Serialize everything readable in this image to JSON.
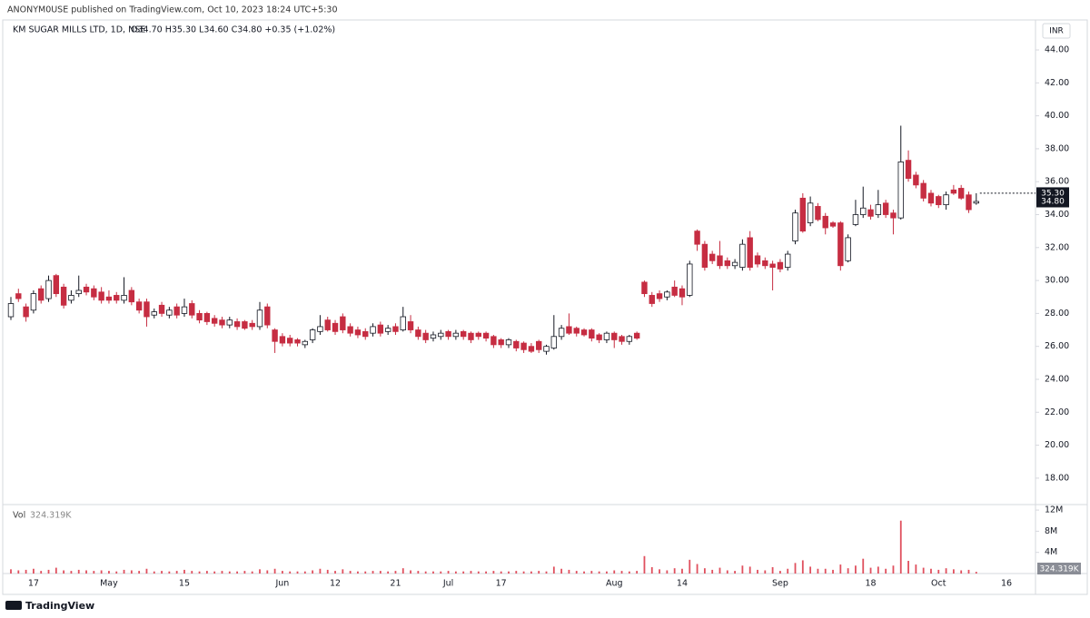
{
  "chart_data": {
    "type": "candlestick",
    "publisher_line": "ANONYM0USE published on TradingView.com, Oct 10, 2023 18:24 UTC+5:30",
    "title": "KM SUGAR MILLS LTD, 1D, NSE",
    "ohlc_text": "O34.70 H35.30 L34.60 C34.80 +0.35 (+1.02%)",
    "currency": "INR",
    "volume_title": "Vol",
    "volume_last_label": "324.319K",
    "brand": "TradingView",
    "grid": false,
    "up_color": "#ffffff",
    "down_color": "#c62d42",
    "volume_color": "#e0505e",
    "categories": [
      null,
      null,
      null,
      "17",
      null,
      null,
      null,
      null,
      null,
      null,
      null,
      null,
      null,
      "May",
      null,
      null,
      null,
      null,
      null,
      null,
      null,
      null,
      null,
      "15",
      null,
      null,
      null,
      null,
      null,
      null,
      null,
      null,
      null,
      null,
      null,
      null,
      "Jun",
      null,
      null,
      null,
      null,
      null,
      null,
      "12",
      null,
      null,
      null,
      null,
      null,
      null,
      null,
      "21",
      null,
      null,
      null,
      null,
      null,
      null,
      "Jul",
      null,
      null,
      null,
      null,
      null,
      null,
      "17",
      null,
      null,
      null,
      null,
      null,
      null,
      null,
      null,
      null,
      null,
      null,
      null,
      null,
      null,
      "Aug",
      null,
      null,
      null,
      null,
      null,
      null,
      null,
      null,
      "14",
      null,
      null,
      null,
      null,
      null,
      null,
      null,
      null,
      null,
      null,
      null,
      null,
      "Sep",
      null,
      null,
      null,
      null,
      null,
      null,
      null,
      null,
      null,
      null,
      null,
      "18",
      null,
      null,
      null,
      null,
      null,
      null,
      null,
      null,
      "Oct",
      null,
      null,
      null,
      null,
      null,
      null,
      null,
      null,
      "16"
    ],
    "ohlc": [
      [
        27.8,
        29.0,
        27.6,
        28.6
      ],
      [
        29.2,
        29.5,
        28.7,
        28.9
      ],
      [
        28.4,
        28.6,
        27.5,
        27.8
      ],
      [
        28.2,
        29.4,
        28.0,
        29.2
      ],
      [
        29.5,
        29.7,
        28.6,
        28.8
      ],
      [
        28.9,
        30.3,
        28.7,
        30.0
      ],
      [
        30.3,
        30.4,
        29.0,
        29.2
      ],
      [
        29.6,
        29.8,
        28.3,
        28.5
      ],
      [
        28.8,
        29.4,
        28.6,
        29.1
      ],
      [
        29.2,
        30.3,
        29.0,
        29.4
      ],
      [
        29.6,
        29.8,
        29.1,
        29.3
      ],
      [
        29.5,
        29.7,
        28.8,
        29.0
      ],
      [
        29.3,
        29.6,
        28.6,
        28.8
      ],
      [
        29.0,
        29.4,
        28.6,
        28.8
      ],
      [
        29.1,
        29.3,
        28.6,
        28.8
      ],
      [
        28.8,
        30.2,
        28.6,
        29.1
      ],
      [
        29.4,
        29.6,
        28.5,
        28.7
      ],
      [
        28.7,
        28.9,
        28.0,
        28.2
      ],
      [
        28.7,
        28.9,
        27.2,
        27.8
      ],
      [
        27.9,
        28.3,
        27.7,
        28.1
      ],
      [
        28.5,
        28.7,
        27.8,
        28.0
      ],
      [
        27.9,
        28.4,
        27.7,
        28.2
      ],
      [
        28.4,
        28.6,
        27.7,
        27.9
      ],
      [
        28.0,
        28.9,
        27.8,
        28.4
      ],
      [
        28.6,
        28.8,
        27.7,
        27.9
      ],
      [
        28.0,
        28.2,
        27.4,
        27.6
      ],
      [
        28.0,
        28.1,
        27.3,
        27.5
      ],
      [
        27.7,
        27.9,
        27.2,
        27.4
      ],
      [
        27.6,
        27.8,
        27.1,
        27.3
      ],
      [
        27.3,
        27.8,
        27.1,
        27.6
      ],
      [
        27.5,
        27.7,
        27.0,
        27.2
      ],
      [
        27.5,
        27.6,
        27.0,
        27.1
      ],
      [
        27.4,
        27.6,
        27.0,
        27.2
      ],
      [
        27.2,
        28.7,
        27.0,
        28.2
      ],
      [
        28.4,
        28.6,
        27.1,
        27.3
      ],
      [
        27.0,
        27.1,
        25.6,
        26.3
      ],
      [
        26.6,
        26.8,
        26.0,
        26.2
      ],
      [
        26.5,
        26.7,
        26.0,
        26.2
      ],
      [
        26.4,
        26.5,
        26.0,
        26.2
      ],
      [
        26.1,
        26.4,
        25.9,
        26.3
      ],
      [
        26.4,
        27.1,
        26.2,
        27.0
      ],
      [
        26.9,
        27.9,
        26.7,
        27.2
      ],
      [
        27.6,
        27.8,
        26.9,
        27.0
      ],
      [
        27.4,
        27.6,
        26.7,
        26.9
      ],
      [
        27.8,
        28.0,
        26.8,
        27.0
      ],
      [
        27.2,
        27.4,
        26.6,
        26.8
      ],
      [
        27.0,
        27.2,
        26.5,
        26.7
      ],
      [
        26.9,
        27.1,
        26.4,
        26.6
      ],
      [
        26.8,
        27.4,
        26.6,
        27.2
      ],
      [
        27.3,
        27.5,
        26.6,
        26.8
      ],
      [
        26.9,
        27.3,
        26.7,
        27.1
      ],
      [
        27.2,
        27.4,
        26.7,
        26.9
      ],
      [
        27.0,
        28.4,
        26.9,
        27.8
      ],
      [
        27.5,
        27.9,
        26.8,
        27.0
      ],
      [
        27.0,
        27.2,
        26.4,
        26.6
      ],
      [
        26.8,
        27.0,
        26.2,
        26.4
      ],
      [
        26.5,
        26.9,
        26.3,
        26.7
      ],
      [
        26.6,
        27.0,
        26.4,
        26.8
      ],
      [
        26.9,
        27.0,
        26.4,
        26.6
      ],
      [
        26.6,
        27.0,
        26.4,
        26.8
      ],
      [
        26.9,
        27.0,
        26.4,
        26.6
      ],
      [
        26.8,
        26.9,
        26.2,
        26.4
      ],
      [
        26.8,
        26.9,
        26.4,
        26.6
      ],
      [
        26.8,
        26.9,
        26.3,
        26.5
      ],
      [
        26.6,
        26.7,
        25.9,
        26.1
      ],
      [
        26.4,
        26.5,
        25.9,
        26.1
      ],
      [
        26.1,
        26.5,
        25.9,
        26.4
      ],
      [
        26.3,
        26.4,
        25.7,
        25.9
      ],
      [
        26.2,
        26.3,
        25.6,
        25.8
      ],
      [
        26.0,
        26.2,
        25.6,
        25.7
      ],
      [
        26.3,
        26.4,
        25.6,
        25.8
      ],
      [
        25.7,
        26.1,
        25.5,
        26.0
      ],
      [
        25.9,
        27.9,
        25.8,
        26.6
      ],
      [
        26.6,
        27.3,
        26.4,
        27.1
      ],
      [
        27.2,
        28.0,
        26.7,
        26.8
      ],
      [
        27.1,
        27.2,
        26.6,
        26.8
      ],
      [
        27.0,
        27.1,
        26.6,
        26.7
      ],
      [
        27.0,
        27.1,
        26.3,
        26.5
      ],
      [
        26.7,
        26.8,
        26.2,
        26.4
      ],
      [
        26.4,
        26.9,
        26.2,
        26.8
      ],
      [
        26.8,
        26.9,
        25.9,
        26.4
      ],
      [
        26.6,
        26.7,
        26.1,
        26.3
      ],
      [
        26.3,
        26.7,
        26.1,
        26.6
      ],
      [
        26.8,
        26.9,
        26.4,
        26.5
      ],
      [
        29.9,
        30.0,
        29.0,
        29.2
      ],
      [
        29.1,
        29.3,
        28.4,
        28.6
      ],
      [
        29.2,
        29.4,
        28.7,
        28.9
      ],
      [
        29.0,
        29.4,
        28.8,
        29.3
      ],
      [
        29.6,
        30.0,
        29.0,
        29.1
      ],
      [
        29.5,
        29.7,
        28.5,
        29.0
      ],
      [
        29.1,
        31.2,
        29.0,
        31.0
      ],
      [
        33.0,
        33.1,
        31.8,
        32.2
      ],
      [
        32.2,
        32.4,
        30.6,
        30.8
      ],
      [
        31.6,
        31.8,
        31.0,
        31.2
      ],
      [
        31.5,
        32.4,
        30.7,
        30.9
      ],
      [
        31.2,
        31.4,
        30.7,
        30.9
      ],
      [
        30.9,
        31.3,
        30.7,
        31.1
      ],
      [
        30.8,
        32.5,
        30.6,
        32.2
      ],
      [
        32.6,
        33.0,
        30.6,
        30.8
      ],
      [
        31.5,
        31.7,
        30.8,
        31.0
      ],
      [
        31.2,
        31.4,
        30.7,
        30.9
      ],
      [
        31.0,
        31.2,
        29.4,
        30.8
      ],
      [
        31.1,
        31.3,
        30.5,
        30.7
      ],
      [
        30.8,
        31.8,
        30.6,
        31.6
      ],
      [
        32.4,
        34.3,
        32.2,
        34.1
      ],
      [
        35.0,
        35.3,
        32.9,
        33.0
      ],
      [
        33.5,
        35.1,
        33.3,
        34.7
      ],
      [
        34.5,
        34.7,
        33.6,
        33.7
      ],
      [
        33.9,
        34.1,
        32.8,
        33.2
      ],
      [
        33.5,
        33.6,
        33.2,
        33.3
      ],
      [
        33.5,
        33.6,
        30.6,
        30.9
      ],
      [
        31.2,
        32.8,
        31.1,
        32.6
      ],
      [
        33.4,
        34.9,
        33.3,
        34.0
      ],
      [
        34.0,
        35.7,
        33.8,
        34.4
      ],
      [
        34.3,
        34.6,
        33.7,
        33.9
      ],
      [
        34.0,
        35.5,
        33.8,
        34.6
      ],
      [
        34.7,
        34.9,
        33.8,
        34.0
      ],
      [
        34.1,
        34.3,
        32.8,
        33.8
      ],
      [
        33.8,
        39.4,
        33.7,
        37.2
      ],
      [
        37.3,
        37.9,
        36.0,
        36.2
      ],
      [
        36.4,
        36.6,
        35.6,
        35.8
      ],
      [
        35.9,
        36.1,
        34.8,
        35.0
      ],
      [
        35.3,
        35.5,
        34.5,
        34.7
      ],
      [
        35.1,
        35.2,
        34.4,
        34.6
      ],
      [
        34.6,
        35.4,
        34.3,
        35.2
      ],
      [
        35.5,
        35.8,
        35.2,
        35.3
      ],
      [
        35.6,
        35.8,
        34.9,
        35.0
      ],
      [
        35.2,
        35.4,
        34.1,
        34.3
      ],
      [
        34.7,
        35.3,
        34.6,
        34.8
      ],
      null,
      null,
      null,
      null
    ],
    "volume": [
      800000,
      600000,
      700000,
      900000,
      500000,
      700000,
      1100000,
      600000,
      500000,
      700000,
      600000,
      500000,
      600000,
      500000,
      400000,
      700000,
      600000,
      500000,
      900000,
      400000,
      500000,
      400000,
      500000,
      700000,
      500000,
      400000,
      500000,
      400000,
      500000,
      400000,
      400000,
      500000,
      400000,
      800000,
      600000,
      900000,
      500000,
      400000,
      400000,
      400000,
      600000,
      900000,
      700000,
      500000,
      800000,
      500000,
      400000,
      400000,
      500000,
      500000,
      400000,
      500000,
      1000000,
      600000,
      500000,
      400000,
      400000,
      400000,
      500000,
      400000,
      400000,
      500000,
      400000,
      400000,
      500000,
      400000,
      400000,
      500000,
      400000,
      400000,
      500000,
      400000,
      1300000,
      900000,
      700000,
      500000,
      400000,
      500000,
      400000,
      400000,
      600000,
      500000,
      400000,
      500000,
      3300000,
      1200000,
      800000,
      600000,
      1000000,
      900000,
      2600000,
      1800000,
      1000000,
      700000,
      1100000,
      600000,
      500000,
      1500000,
      1300000,
      700000,
      600000,
      1200000,
      500000,
      900000,
      2000000,
      2500000,
      1300000,
      900000,
      900000,
      700000,
      1700000,
      1000000,
      1500000,
      2800000,
      1100000,
      1300000,
      900000,
      1500000,
      10000000,
      2400000,
      1700000,
      1100000,
      900000,
      700000,
      1000000,
      800000,
      600000,
      700000,
      324319,
      null,
      null,
      null,
      null
    ],
    "ylim": [
      16.45,
      45.82
    ],
    "yticks": [
      {
        "value": 18,
        "label": "18.00"
      },
      {
        "value": 20,
        "label": "20.00"
      },
      {
        "value": 22,
        "label": "22.00"
      },
      {
        "value": 24,
        "label": "24.00"
      },
      {
        "value": 26,
        "label": "26.00"
      },
      {
        "value": 28,
        "label": "28.00"
      },
      {
        "value": 30,
        "label": "30.00"
      },
      {
        "value": 32,
        "label": "32.00"
      },
      {
        "value": 34,
        "label": "34.00"
      },
      {
        "value": 36,
        "label": "36.00"
      },
      {
        "value": 38,
        "label": "38.00"
      },
      {
        "value": 40,
        "label": "40.00"
      },
      {
        "value": 42,
        "label": "42.00"
      },
      {
        "value": 44,
        "label": "44.00"
      }
    ],
    "volume_ylim": [
      0,
      12870000
    ],
    "volume_yticks": [
      {
        "value": 4000000,
        "label": "4M"
      },
      {
        "value": 8000000,
        "label": "8M"
      },
      {
        "value": 12000000,
        "label": "12M"
      }
    ],
    "price_badges": [
      {
        "value": 35.3,
        "label": "35.30"
      },
      {
        "value": 34.8,
        "label": "34.80"
      }
    ]
  }
}
